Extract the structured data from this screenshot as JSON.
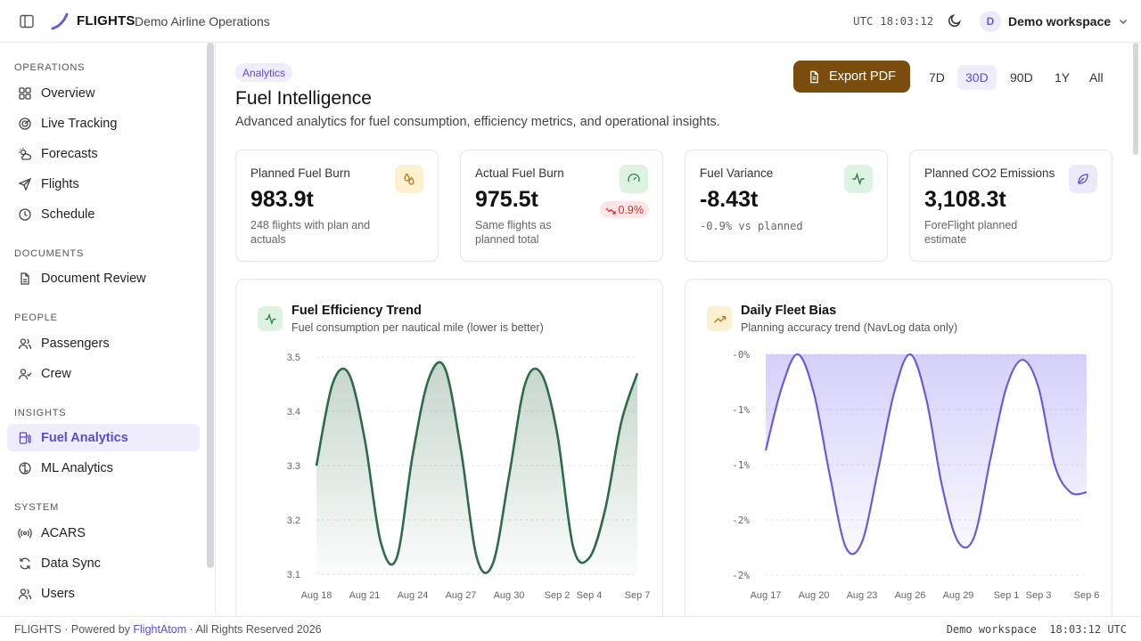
{
  "header": {
    "brand": "FLIGHTS",
    "subtitle": "Demo Airline Operations",
    "utc_clock": "UTC 18:03:12",
    "workspace_initial": "D",
    "workspace_name": "Demo workspace",
    "accent_color": "#5b4ccf"
  },
  "sidebar": {
    "sections": [
      {
        "title": "OPERATIONS",
        "items": [
          {
            "label": "Overview",
            "icon": "grid-icon"
          },
          {
            "label": "Live Tracking",
            "icon": "radar-icon"
          },
          {
            "label": "Forecasts",
            "icon": "sun-cloud-icon"
          },
          {
            "label": "Flights",
            "icon": "plane-icon"
          },
          {
            "label": "Schedule",
            "icon": "clock-icon"
          }
        ]
      },
      {
        "title": "DOCUMENTS",
        "items": [
          {
            "label": "Document Review",
            "icon": "document-icon"
          }
        ]
      },
      {
        "title": "PEOPLE",
        "items": [
          {
            "label": "Passengers",
            "icon": "users-icon"
          },
          {
            "label": "Crew",
            "icon": "user-check-icon"
          }
        ]
      },
      {
        "title": "INSIGHTS",
        "items": [
          {
            "label": "Fuel Analytics",
            "icon": "fuel-icon",
            "active": true
          },
          {
            "label": "ML Analytics",
            "icon": "brain-icon"
          }
        ]
      },
      {
        "title": "SYSTEM",
        "items": [
          {
            "label": "ACARS",
            "icon": "broadcast-icon"
          },
          {
            "label": "Data Sync",
            "icon": "refresh-icon"
          },
          {
            "label": "Users",
            "icon": "users-icon"
          }
        ]
      }
    ]
  },
  "page": {
    "badge": "Analytics",
    "title": "Fuel Intelligence",
    "subtitle": "Advanced analytics for fuel consumption, efficiency metrics, and operational insights.",
    "export_label": "Export PDF",
    "ranges": [
      "7D",
      "30D",
      "90D",
      "1Y",
      "All"
    ],
    "active_range": "30D"
  },
  "kpis": [
    {
      "title": "Planned Fuel Burn",
      "value": "983.9t",
      "note": "248 flights with plan and actuals",
      "icon": "droplets-icon",
      "icon_bg": "#fdf0cf",
      "icon_color": "#b7791f"
    },
    {
      "title": "Actual Fuel Burn",
      "value": "975.5t",
      "note": "Same flights as planned total",
      "delta": "0.9%",
      "icon": "gauge-icon",
      "icon_bg": "#dcf3e2",
      "icon_color": "#2f7a4a"
    },
    {
      "title": "Fuel Variance",
      "value": "-8.43t",
      "note": "-0.9% vs planned",
      "icon": "activity-icon",
      "icon_bg": "#dcf3e2",
      "icon_color": "#2f7a4a"
    },
    {
      "title": "Planned CO2 Emissions",
      "value": "3,108.3t",
      "note": "ForeFlight planned estimate",
      "icon": "leaf-icon",
      "icon_bg": "#ece9fb",
      "icon_color": "#5b4ccf"
    }
  ],
  "charts": {
    "efficiency": {
      "title": "Fuel Efficiency Trend",
      "subtitle": "Fuel consumption per nautical mile (lower is better)"
    },
    "bias": {
      "title": "Daily Fleet Bias",
      "subtitle": "Planning accuracy trend (NavLog data only)"
    }
  },
  "chart_data": [
    {
      "type": "area",
      "title": "Fuel Efficiency Trend",
      "y_ticks": [
        "3.5",
        "3.4",
        "3.3",
        "3.2",
        "3.1"
      ],
      "ylim": [
        3.1,
        3.5
      ],
      "x_ticks": [
        "Aug 18",
        "Aug 21",
        "Aug 24",
        "Aug 27",
        "Aug 30",
        "Sep 2",
        "Sep 4",
        "Sep 7"
      ],
      "x": [
        "Aug 18",
        "Aug 19",
        "Aug 20",
        "Aug 21",
        "Aug 22",
        "Aug 23",
        "Aug 24",
        "Aug 25",
        "Aug 26",
        "Aug 27",
        "Aug 28",
        "Aug 29",
        "Aug 30",
        "Aug 31",
        "Sep 1",
        "Sep 2",
        "Sep 3",
        "Sep 4",
        "Sep 5",
        "Sep 6",
        "Sep 7"
      ],
      "values": [
        3.3,
        3.45,
        3.47,
        3.35,
        3.16,
        3.13,
        3.32,
        3.46,
        3.48,
        3.33,
        3.13,
        3.12,
        3.28,
        3.45,
        3.47,
        3.36,
        3.15,
        3.13,
        3.22,
        3.38,
        3.47
      ],
      "color": "#2f6b49",
      "grid": true
    },
    {
      "type": "area",
      "title": "Daily Fleet Bias",
      "y_ticks": [
        "-0%",
        "-1%",
        "-1%",
        "-2%",
        "-2%"
      ],
      "ylim": [
        -2.0,
        0.0
      ],
      "x_ticks": [
        "Aug 17",
        "Aug 20",
        "Aug 23",
        "Aug 26",
        "Aug 29",
        "Sep 1",
        "Sep 3",
        "Sep 6"
      ],
      "x": [
        "Aug 17",
        "Aug 18",
        "Aug 19",
        "Aug 20",
        "Aug 21",
        "Aug 22",
        "Aug 23",
        "Aug 24",
        "Aug 25",
        "Aug 26",
        "Aug 27",
        "Aug 28",
        "Aug 29",
        "Aug 30",
        "Aug 31",
        "Sep 1",
        "Sep 2",
        "Sep 3",
        "Sep 4",
        "Sep 5",
        "Sep 6"
      ],
      "values": [
        -0.87,
        -0.3,
        0.0,
        -0.35,
        -1.1,
        -1.75,
        -1.7,
        -1.05,
        -0.35,
        0.0,
        -0.4,
        -1.2,
        -1.7,
        -1.65,
        -0.95,
        -0.3,
        -0.05,
        -0.3,
        -1.0,
        -1.25,
        -1.25
      ],
      "color": "#6b5bd6",
      "grid": true
    }
  ],
  "footer": {
    "left_prefix": "FLIGHTS · Powered by",
    "link": "FlightAtom",
    "left_suffix": "· All Rights Reserved 2026",
    "right": "Demo workspace  18:03:12 UTC"
  }
}
